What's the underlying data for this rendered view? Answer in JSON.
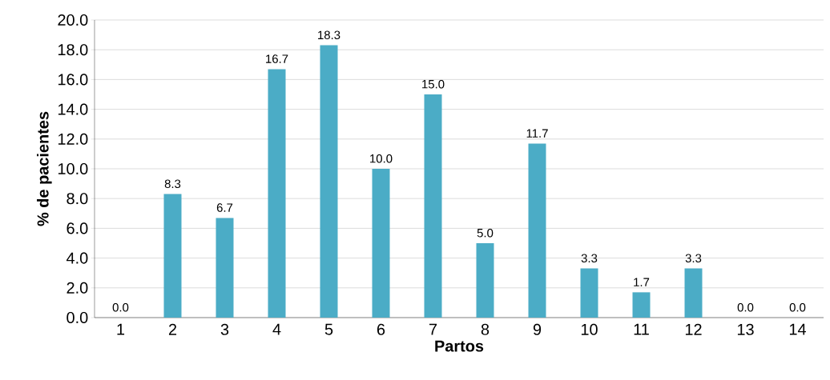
{
  "chart_data": {
    "type": "bar",
    "xlabel": "Partos",
    "ylabel": "% de pacientes",
    "categories": [
      "1",
      "2",
      "3",
      "4",
      "5",
      "6",
      "7",
      "8",
      "9",
      "10",
      "11",
      "12",
      "13",
      "14"
    ],
    "values": [
      0.0,
      8.3,
      6.7,
      16.7,
      18.3,
      10.0,
      15.0,
      5.0,
      11.7,
      3.3,
      1.7,
      3.3,
      0.0,
      0.0
    ],
    "value_labels": [
      "0.0",
      "8.3",
      "6.7",
      "16.7",
      "18.3",
      "10.0",
      "15.0",
      "5.0",
      "11.7",
      "3.3",
      "1.7",
      "3.3",
      "0.0",
      "0.0"
    ],
    "color": "#4bacc6",
    "grid": "y",
    "ylim": [
      0,
      20
    ],
    "yticks": [
      {
        "value": 0,
        "label": "0.0"
      },
      {
        "value": 2,
        "label": "2.0"
      },
      {
        "value": 4,
        "label": "4.0"
      },
      {
        "value": 6,
        "label": "6.0"
      },
      {
        "value": 8,
        "label": "8.0"
      },
      {
        "value": 10,
        "label": "10.0"
      },
      {
        "value": 12,
        "label": "12.0"
      },
      {
        "value": 14,
        "label": "14.0"
      },
      {
        "value": 16,
        "label": "16.0"
      },
      {
        "value": 18,
        "label": "18.0"
      },
      {
        "value": 20,
        "label": "20.0"
      }
    ]
  }
}
